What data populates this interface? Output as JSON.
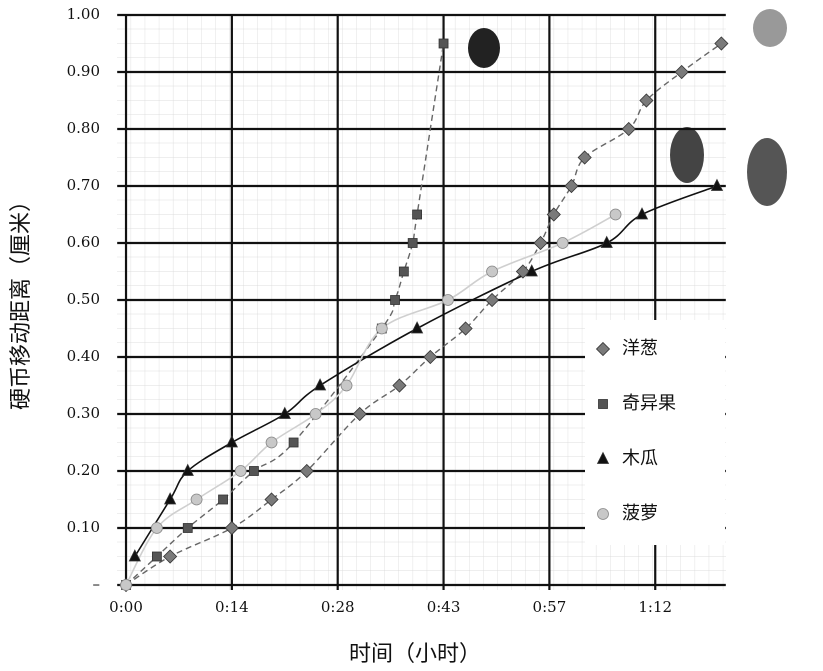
{
  "chart_data": {
    "type": "scatter",
    "xlabel": "时间（小时）",
    "ylabel": "硬币移动距离（厘米）",
    "xlim": [
      -0.02,
      1.36
    ],
    "ylim": [
      0,
      1.0
    ],
    "xticks": [
      {
        "value": 0,
        "label": "0:00"
      },
      {
        "value": 0.24,
        "label": "0:14"
      },
      {
        "value": 0.48,
        "label": "0:28"
      },
      {
        "value": 0.72,
        "label": "0:43"
      },
      {
        "value": 0.96,
        "label": "0:57"
      },
      {
        "value": 1.2,
        "label": "1:12"
      }
    ],
    "yticks": [
      {
        "value": 0,
        "label": "–"
      },
      {
        "value": 0.1,
        "label": "0.10"
      },
      {
        "value": 0.2,
        "label": "0.20"
      },
      {
        "value": 0.3,
        "label": "0.30"
      },
      {
        "value": 0.4,
        "label": "0.40"
      },
      {
        "value": 0.5,
        "label": "0.50"
      },
      {
        "value": 0.6,
        "label": "0.60"
      },
      {
        "value": 0.7,
        "label": "0.70"
      },
      {
        "value": 0.8,
        "label": "0.80"
      },
      {
        "value": 0.9,
        "label": "0.90"
      },
      {
        "value": 1.0,
        "label": "1.00"
      }
    ],
    "grid": true,
    "legend": "lower right",
    "series": [
      {
        "name": "洋葱",
        "marker": "diamond",
        "color": "#7a7a7a",
        "line": "dashed",
        "x": [
          0,
          0.1,
          0.24,
          0.33,
          0.41,
          0.53,
          0.62,
          0.69,
          0.77,
          0.83,
          0.9,
          0.94,
          0.97,
          1.01,
          1.04,
          1.14,
          1.18,
          1.26,
          1.35
        ],
        "values": [
          0,
          0.05,
          0.1,
          0.15,
          0.2,
          0.3,
          0.35,
          0.4,
          0.45,
          0.5,
          0.55,
          0.6,
          0.65,
          0.7,
          0.75,
          0.8,
          0.85,
          0.9,
          0.95
        ]
      },
      {
        "name": "奇异果",
        "marker": "square",
        "color": "#555555",
        "line": "dashed",
        "x": [
          0,
          0.07,
          0.14,
          0.22,
          0.29,
          0.38,
          0.58,
          0.61,
          0.63,
          0.65,
          0.66,
          0.72
        ],
        "values": [
          0,
          0.05,
          0.1,
          0.15,
          0.2,
          0.25,
          0.45,
          0.5,
          0.55,
          0.6,
          0.65,
          0.95
        ]
      },
      {
        "name": "木瓜",
        "marker": "triangle",
        "color": "#111111",
        "line": "solid",
        "x": [
          0.02,
          0.1,
          0.14,
          0.24,
          0.36,
          0.44,
          0.66,
          0.92,
          1.09,
          1.17,
          1.34
        ],
        "values": [
          0.05,
          0.15,
          0.2,
          0.25,
          0.3,
          0.35,
          0.45,
          0.55,
          0.6,
          0.65,
          0.7
        ]
      },
      {
        "name": "菠萝",
        "marker": "circle",
        "color": "#c8c8c8",
        "line": "light",
        "x": [
          0,
          0.07,
          0.16,
          0.26,
          0.33,
          0.43,
          0.5,
          0.58,
          0.73,
          0.83,
          0.99,
          1.11
        ],
        "values": [
          0,
          0.1,
          0.15,
          0.2,
          0.25,
          0.3,
          0.35,
          0.45,
          0.5,
          0.55,
          0.6,
          0.65
        ]
      }
    ]
  }
}
